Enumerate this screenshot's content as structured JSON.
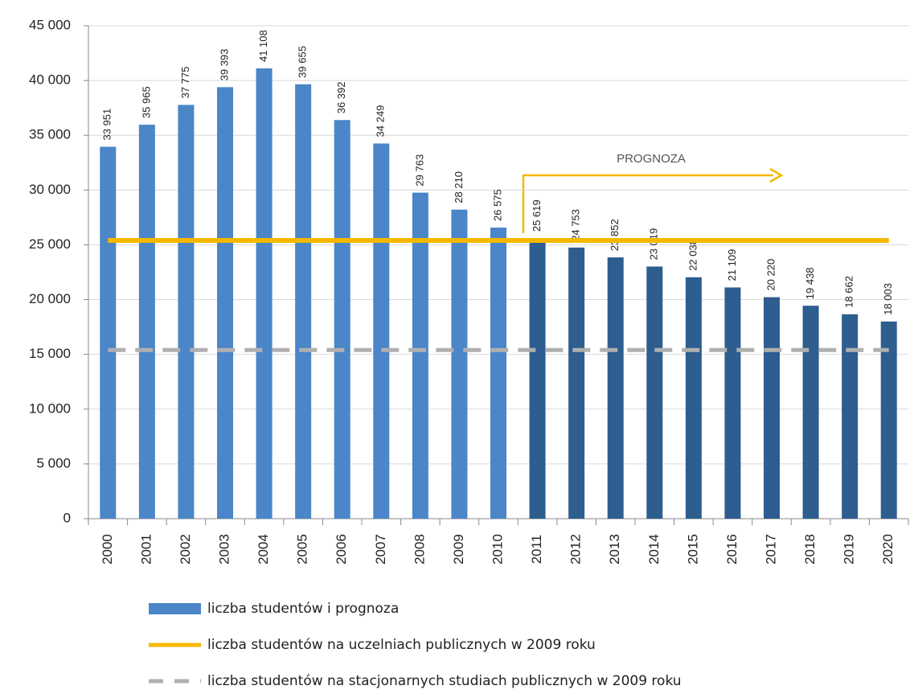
{
  "chart_data": {
    "type": "bar",
    "categories": [
      "2000",
      "2001",
      "2002",
      "2003",
      "2004",
      "2005",
      "2006",
      "2007",
      "2008",
      "2009",
      "2010",
      "2011",
      "2012",
      "2013",
      "2014",
      "2015",
      "2016",
      "2017",
      "2018",
      "2019",
      "2020"
    ],
    "series": [
      {
        "name": "liczba studentów i prognoza",
        "type": "bar",
        "colors": [
          "#4a86c8",
          "#4a86c8",
          "#4a86c8",
          "#4a86c8",
          "#4a86c8",
          "#4a86c8",
          "#4a86c8",
          "#4a86c8",
          "#4a86c8",
          "#4a86c8",
          "#4a86c8",
          "#2e5d8f",
          "#2e5d8f",
          "#2e5d8f",
          "#2e5d8f",
          "#2e5d8f",
          "#2e5d8f",
          "#2e5d8f",
          "#2e5d8f",
          "#2e5d8f",
          "#2e5d8f"
        ],
        "color": "#4a86c8",
        "values": [
          33951,
          35965,
          37775,
          39393,
          41108,
          39655,
          36392,
          34249,
          29763,
          28210,
          26575,
          25619,
          24753,
          23852,
          23019,
          22038,
          21109,
          20220,
          19438,
          18662,
          18003
        ],
        "value_labels": [
          "33 951",
          "35 965",
          "37 775",
          "39 393",
          "41 108",
          "39 655",
          "36 392",
          "34 249",
          "29 763",
          "28 210",
          "26 575",
          "25 619",
          "24 753",
          "23 852",
          "23 019",
          "22 038",
          "21 109",
          "20 220",
          "19 438",
          "18 662",
          "18 003"
        ]
      },
      {
        "name": "liczba studentów na uczelniach publicznych w 2009 roku",
        "type": "line",
        "color": "#f5b800",
        "dash": false,
        "values": [
          25400,
          25400,
          25400,
          25400,
          25400,
          25400,
          25400,
          25400,
          25400,
          25400,
          25400,
          25400,
          25400,
          25400,
          25400,
          25400,
          25400,
          25400,
          25400,
          25400,
          25400
        ]
      },
      {
        "name": "liczba studentów na stacjonarnych studiach publicznych w 2009 roku",
        "type": "line",
        "color": "#b0b0b0",
        "dash": true,
        "values": [
          15400,
          15400,
          15400,
          15400,
          15400,
          15400,
          15400,
          15400,
          15400,
          15400,
          15400,
          15400,
          15400,
          15400,
          15400,
          15400,
          15400,
          15400,
          15400,
          15400,
          15400
        ]
      }
    ],
    "annotation": "PROGNOZA",
    "ylim": [
      0,
      45000
    ],
    "yticks": [
      0,
      {
        "value": 5000,
        "label": "5 000"
      },
      {
        "value": 10000,
        "label": "10 000"
      },
      {
        "value": 15000,
        "label": "15 000"
      },
      {
        "value": 20000,
        "label": "20 000"
      },
      {
        "value": 25000,
        "label": "25 000"
      },
      {
        "value": 30000,
        "label": "30 000"
      },
      {
        "value": 35000,
        "label": "35 000"
      },
      {
        "value": 40000,
        "label": "40 000"
      },
      {
        "value": 45000,
        "label": "45 000"
      }
    ],
    "grid": true
  }
}
